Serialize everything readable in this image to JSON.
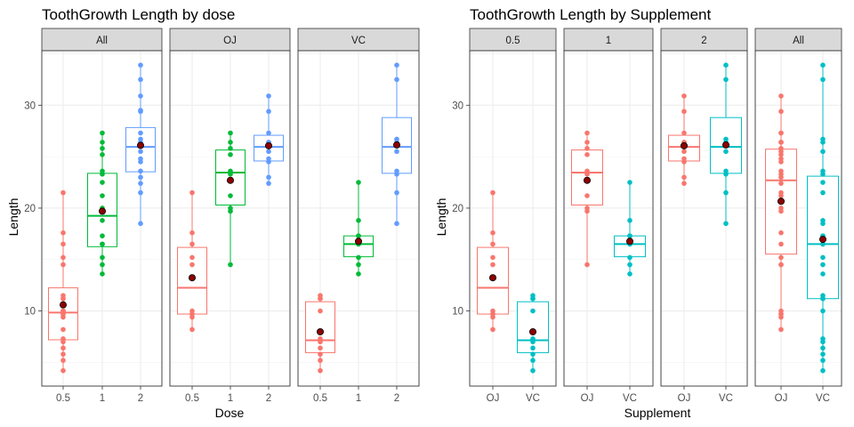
{
  "colors": {
    "dose_0_5": "#F8766D",
    "dose_1": "#00BA38",
    "dose_2": "#619CFF",
    "OJ": "#F8766D",
    "VC": "#00BFC4",
    "mean": "#8B0000",
    "strip_fill": "#D9D9D9",
    "grid": "#EBEBEB"
  },
  "chart_data": [
    {
      "type": "box",
      "title": "ToothGrowth Length by dose",
      "xlabel": "Dose",
      "ylabel": "Length",
      "yticks": [
        10,
        20,
        30
      ],
      "ylim": [
        2.7,
        35.3
      ],
      "facets": [
        {
          "label": "All",
          "groups": [
            {
              "x": "0.5",
              "color_key": "dose_0_5",
              "box": [
                4.2,
                7.2,
                9.85,
                12.25,
                21.5
              ],
              "mean": 10.6,
              "points": [
                4.2,
                5.2,
                5.8,
                6.4,
                7.0,
                7.3,
                8.2,
                9.4,
                9.7,
                9.7,
                10.0,
                10.0,
                11.2,
                11.2,
                11.5,
                14.5,
                15.2,
                16.5,
                17.6,
                21.5
              ]
            },
            {
              "x": "1",
              "color_key": "dose_1",
              "box": [
                13.6,
                16.25,
                19.25,
                23.38,
                27.3
              ],
              "mean": 19.7,
              "points": [
                13.6,
                14.5,
                15.2,
                16.5,
                16.5,
                17.3,
                18.8,
                19.7,
                20.0,
                21.2,
                22.5,
                23.3,
                23.6,
                25.2,
                25.8,
                26.4,
                27.3
              ]
            },
            {
              "x": "2",
              "color_key": "dose_2",
              "box": [
                18.5,
                23.53,
                25.95,
                27.83,
                33.9
              ],
              "mean": 26.1,
              "points": [
                18.5,
                21.5,
                22.4,
                23.0,
                23.6,
                24.5,
                24.8,
                25.5,
                26.4,
                26.7,
                27.3,
                29.4,
                29.5,
                30.9,
                32.5,
                33.9
              ]
            }
          ]
        },
        {
          "label": "OJ",
          "groups": [
            {
              "x": "0.5",
              "color_key": "dose_0_5",
              "box": [
                8.2,
                9.7,
                12.25,
                16.18,
                21.5
              ],
              "mean": 13.23,
              "points": [
                8.2,
                9.4,
                9.7,
                9.7,
                10.0,
                14.5,
                15.2,
                16.5,
                17.6,
                21.5
              ]
            },
            {
              "x": "1",
              "color_key": "dose_1",
              "box": [
                14.5,
                20.3,
                23.45,
                25.65,
                27.3
              ],
              "mean": 22.7,
              "points": [
                14.5,
                19.7,
                20.0,
                21.2,
                23.3,
                23.6,
                25.2,
                25.8,
                26.4,
                27.3
              ]
            },
            {
              "x": "2",
              "color_key": "dose_2",
              "box": [
                22.4,
                24.58,
                25.95,
                27.08,
                30.9
              ],
              "mean": 26.06,
              "points": [
                22.4,
                23.0,
                24.5,
                24.8,
                25.5,
                26.4,
                26.4,
                27.3,
                29.4,
                30.9
              ]
            }
          ]
        },
        {
          "label": "VC",
          "groups": [
            {
              "x": "0.5",
              "color_key": "dose_0_5",
              "box": [
                4.2,
                5.95,
                7.15,
                10.9,
                11.5
              ],
              "mean": 7.98,
              "points": [
                4.2,
                5.2,
                5.8,
                6.4,
                7.0,
                7.3,
                10.0,
                11.2,
                11.2,
                11.5
              ]
            },
            {
              "x": "1",
              "color_key": "dose_1",
              "box": [
                13.6,
                15.27,
                16.5,
                17.3,
                22.5
              ],
              "mean": 16.77,
              "points": [
                13.6,
                14.5,
                15.2,
                16.5,
                16.5,
                17.3,
                17.3,
                18.8,
                22.5
              ]
            },
            {
              "x": "2",
              "color_key": "dose_2",
              "box": [
                18.5,
                23.38,
                25.95,
                28.8,
                33.9
              ],
              "mean": 26.14,
              "points": [
                18.5,
                21.5,
                23.3,
                23.6,
                25.5,
                26.4,
                26.7,
                32.5,
                33.9
              ]
            }
          ]
        }
      ]
    },
    {
      "type": "box",
      "title": "ToothGrowth Length by Supplement",
      "xlabel": "Supplement",
      "ylabel": "Length",
      "yticks": [
        10,
        20,
        30
      ],
      "ylim": [
        2.7,
        35.3
      ],
      "facets": [
        {
          "label": "0.5",
          "groups": [
            {
              "x": "OJ",
              "color_key": "OJ",
              "box": [
                8.2,
                9.7,
                12.25,
                16.18,
                21.5
              ],
              "mean": 13.23,
              "points": [
                8.2,
                9.4,
                9.7,
                9.7,
                10.0,
                14.5,
                15.2,
                16.5,
                17.6,
                21.5
              ]
            },
            {
              "x": "VC",
              "color_key": "VC",
              "box": [
                4.2,
                5.95,
                7.15,
                10.9,
                11.5
              ],
              "mean": 7.98,
              "points": [
                4.2,
                5.2,
                5.8,
                6.4,
                7.0,
                7.3,
                10.0,
                11.2,
                11.2,
                11.5
              ]
            }
          ]
        },
        {
          "label": "1",
          "groups": [
            {
              "x": "OJ",
              "color_key": "OJ",
              "box": [
                14.5,
                20.3,
                23.45,
                25.65,
                27.3
              ],
              "mean": 22.7,
              "points": [
                14.5,
                19.7,
                20.0,
                21.2,
                23.3,
                23.6,
                25.2,
                25.8,
                26.4,
                27.3
              ]
            },
            {
              "x": "VC",
              "color_key": "VC",
              "box": [
                13.6,
                15.27,
                16.5,
                17.3,
                22.5
              ],
              "mean": 16.77,
              "points": [
                13.6,
                14.5,
                15.2,
                16.5,
                16.5,
                17.3,
                17.3,
                18.8,
                22.5
              ]
            }
          ]
        },
        {
          "label": "2",
          "groups": [
            {
              "x": "OJ",
              "color_key": "OJ",
              "box": [
                22.4,
                24.58,
                25.95,
                27.08,
                30.9
              ],
              "mean": 26.06,
              "points": [
                22.4,
                23.0,
                24.5,
                24.8,
                25.5,
                26.4,
                26.4,
                27.3,
                29.4,
                30.9
              ]
            },
            {
              "x": "VC",
              "color_key": "VC",
              "box": [
                18.5,
                23.38,
                25.95,
                28.8,
                33.9
              ],
              "mean": 26.14,
              "points": [
                18.5,
                21.5,
                23.3,
                23.6,
                25.5,
                26.4,
                26.7,
                32.5,
                33.9
              ]
            }
          ]
        },
        {
          "label": "All",
          "groups": [
            {
              "x": "OJ",
              "color_key": "OJ",
              "box": [
                8.2,
                15.53,
                22.7,
                25.73,
                30.9
              ],
              "mean": 20.66,
              "points": [
                8.2,
                9.4,
                9.7,
                9.7,
                10.0,
                14.5,
                15.2,
                16.5,
                17.6,
                21.5,
                14.5,
                19.7,
                20.0,
                21.2,
                23.3,
                23.6,
                25.2,
                25.8,
                26.4,
                27.3,
                22.4,
                23.0,
                24.5,
                24.8,
                25.5,
                26.4,
                26.4,
                27.3,
                29.4,
                30.9
              ]
            },
            {
              "x": "VC",
              "color_key": "VC",
              "box": [
                4.2,
                11.2,
                16.5,
                23.1,
                33.9
              ],
              "mean": 16.96,
              "points": [
                4.2,
                5.2,
                5.8,
                6.4,
                7.0,
                7.3,
                10.0,
                11.2,
                11.2,
                11.5,
                13.6,
                14.5,
                15.2,
                16.5,
                16.5,
                17.3,
                17.3,
                18.8,
                22.5,
                18.5,
                21.5,
                23.3,
                23.6,
                25.5,
                26.4,
                26.7,
                32.5,
                33.9
              ]
            }
          ]
        }
      ]
    }
  ]
}
